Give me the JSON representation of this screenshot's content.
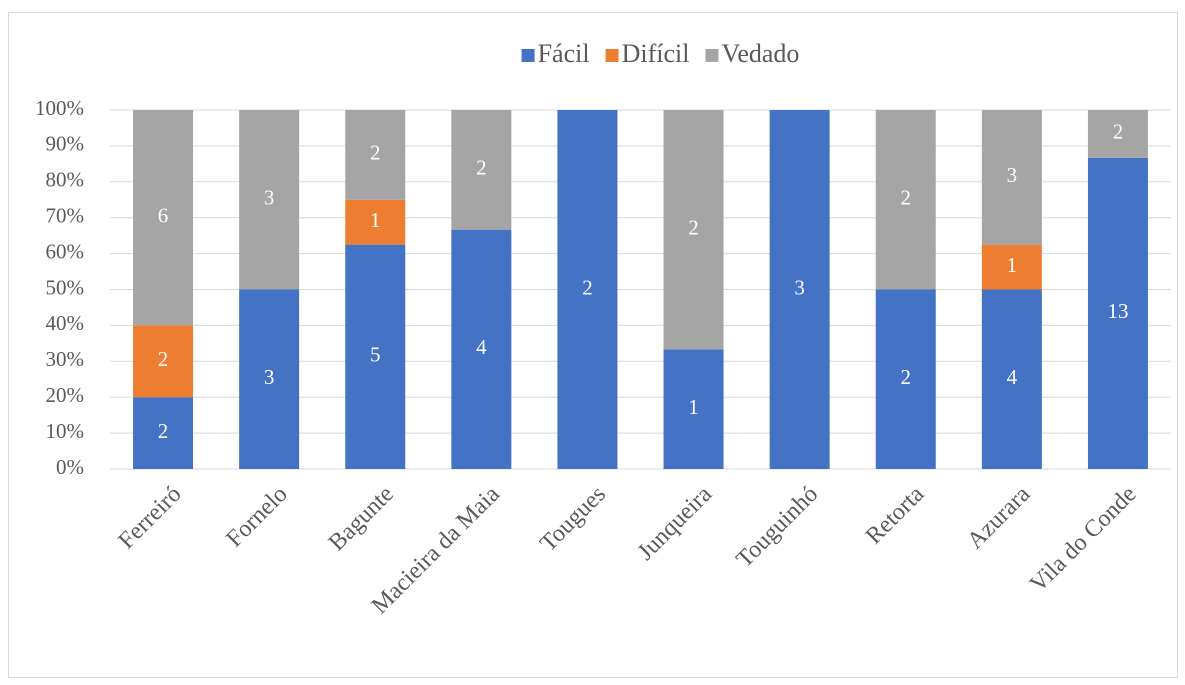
{
  "chart_data": {
    "type": "bar",
    "stacked": "percent",
    "categories": [
      "Ferreiró",
      "Fornelo",
      "Bagunte",
      "Macieira da Maia",
      "Tougues",
      "Junqueira",
      "Touguinhó",
      "Retorta",
      "Azurara",
      "Vila do Conde"
    ],
    "series": [
      {
        "name": "Fácil",
        "color": "#4472c4",
        "values": [
          2,
          3,
          5,
          4,
          2,
          1,
          3,
          2,
          4,
          13
        ]
      },
      {
        "name": "Difícil",
        "color": "#ed7d31",
        "values": [
          2,
          0,
          1,
          0,
          0,
          0,
          0,
          0,
          1,
          0
        ]
      },
      {
        "name": "Vedado",
        "color": "#a5a5a5",
        "values": [
          6,
          3,
          2,
          2,
          0,
          2,
          0,
          2,
          3,
          2
        ]
      }
    ],
    "ylim": [
      0,
      100
    ],
    "yticks": [
      {
        "value": 0,
        "label": "0%"
      },
      {
        "value": 10,
        "label": "10%"
      },
      {
        "value": 20,
        "label": "20%"
      },
      {
        "value": 30,
        "label": "30%"
      },
      {
        "value": 40,
        "label": "40%"
      },
      {
        "value": 50,
        "label": "50%"
      },
      {
        "value": 60,
        "label": "60%"
      },
      {
        "value": 70,
        "label": "70%"
      },
      {
        "value": 80,
        "label": "80%"
      },
      {
        "value": 90,
        "label": "90%"
      },
      {
        "value": 100,
        "label": "100%"
      }
    ],
    "grid": true,
    "legend": "top"
  }
}
